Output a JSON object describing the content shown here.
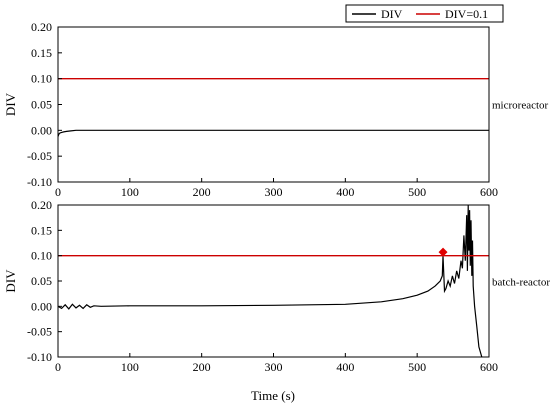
{
  "legend": [
    {
      "name": "DIV",
      "color": "#000000"
    },
    {
      "name": "DIV=0.1",
      "color": "#cc0000"
    }
  ],
  "shared": {
    "xlabel": "Time (s)",
    "xlim": [
      0,
      600
    ],
    "xticks": [
      0,
      100,
      200,
      300,
      400,
      500,
      600
    ]
  },
  "chart_data": [
    {
      "type": "line",
      "panel_label": "microreactor",
      "ylabel": "DIV",
      "ylim": [
        -0.1,
        0.2
      ],
      "yticks": [
        "-0.10",
        "-0.05",
        "0.00",
        "0.05",
        "0.10",
        "0.15",
        "0.20"
      ],
      "grid": false,
      "series": [
        {
          "name": "DIV",
          "color": "#000000",
          "x": [
            0,
            1,
            2,
            3,
            5,
            8,
            12,
            18,
            25,
            40,
            100,
            200,
            300,
            400,
            500,
            600
          ],
          "y": [
            -0.012,
            -0.008,
            -0.006,
            -0.005,
            -0.004,
            -0.003,
            -0.002,
            -0.001,
            0,
            0,
            0,
            0,
            0,
            0,
            0,
            0
          ]
        },
        {
          "name": "DIV=0.1",
          "color": "#cc0000",
          "x": [
            0,
            600
          ],
          "y": [
            0.1,
            0.1
          ]
        }
      ]
    },
    {
      "type": "line",
      "panel_label": "batch-reactor",
      "ylabel": "DIV",
      "ylim": [
        -0.1,
        0.2
      ],
      "yticks": [
        "-0.10",
        "-0.05",
        "0.00",
        "0.05",
        "0.10",
        "0.15",
        "0.20"
      ],
      "grid": false,
      "marker": {
        "x": 536,
        "y": 0.107,
        "shape": "diamond",
        "color": "#e00000"
      },
      "series": [
        {
          "name": "DIV",
          "color": "#000000",
          "x": [
            0,
            5,
            10,
            15,
            20,
            25,
            30,
            35,
            40,
            45,
            50,
            60,
            100,
            200,
            300,
            400,
            450,
            480,
            500,
            515,
            525,
            532,
            535,
            536,
            538,
            540,
            543,
            546,
            549,
            552,
            555,
            558,
            561,
            563,
            565,
            567,
            569,
            570,
            571,
            572,
            573,
            574,
            575,
            576,
            577,
            578,
            580,
            583,
            586,
            590
          ],
          "y": [
            0,
            -0.004,
            0.003,
            -0.005,
            0.004,
            -0.003,
            0.002,
            -0.004,
            0.003,
            -0.002,
            0.001,
            0,
            0.001,
            0.001,
            0.002,
            0.004,
            0.009,
            0.015,
            0.022,
            0.03,
            0.04,
            0.05,
            0.06,
            0.1,
            0.03,
            0.035,
            0.05,
            0.04,
            0.06,
            0.045,
            0.07,
            0.055,
            0.09,
            0.075,
            0.14,
            0.09,
            0.18,
            0.07,
            0.2,
            0.11,
            0.19,
            0.08,
            0.17,
            0.06,
            0.13,
            0.04,
            0.0,
            -0.04,
            -0.08,
            -0.1
          ]
        },
        {
          "name": "DIV=0.1",
          "color": "#cc0000",
          "x": [
            0,
            600
          ],
          "y": [
            0.1,
            0.1
          ]
        }
      ]
    }
  ]
}
